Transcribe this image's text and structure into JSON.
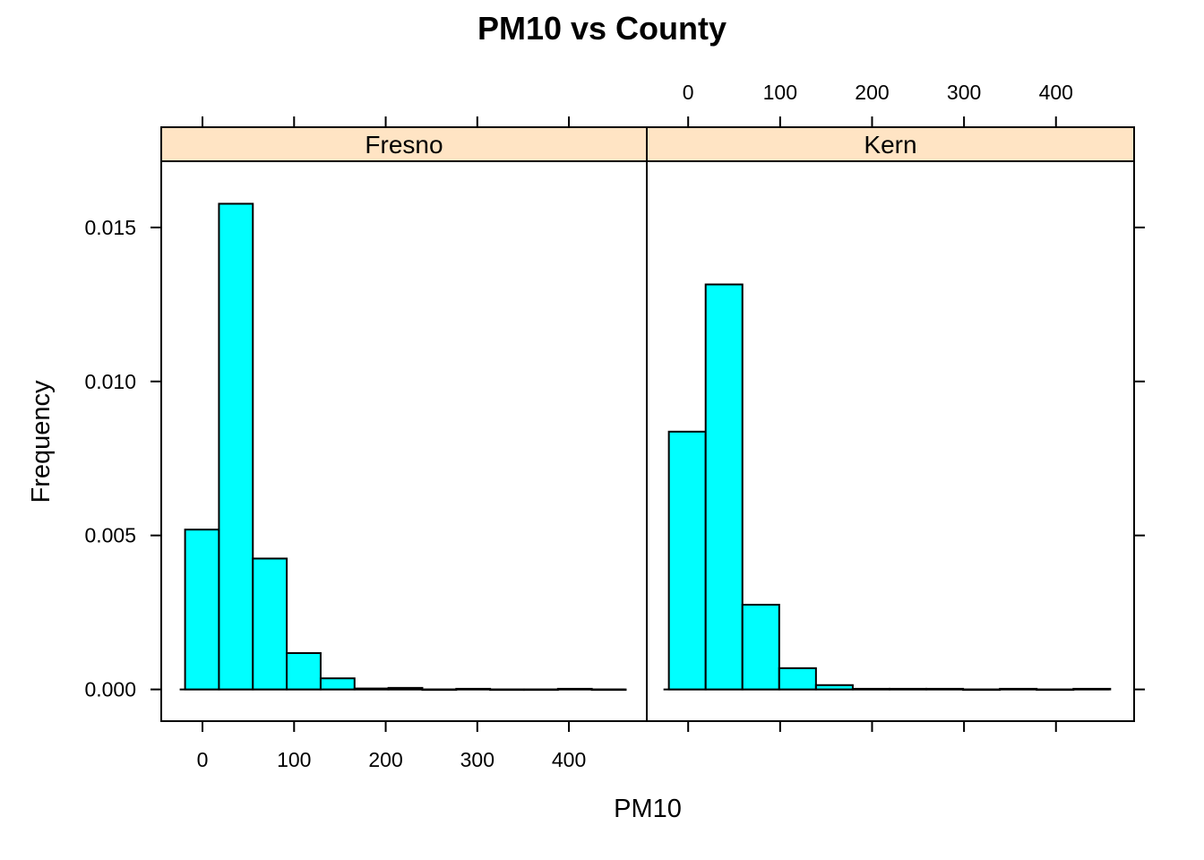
{
  "chart_data": {
    "type": "bar",
    "title": "PM10 vs County",
    "xlabel": "PM10",
    "ylabel": "Frequency",
    "xlim": [
      -45,
      485
    ],
    "ylim": [
      -0.00103,
      0.01715
    ],
    "x_ticks": [
      0,
      100,
      200,
      300,
      400
    ],
    "x_tick_labels": [
      "0",
      "100",
      "200",
      "300",
      "400"
    ],
    "y_ticks": [
      0.0,
      0.005,
      0.01,
      0.015
    ],
    "y_tick_labels": [
      "0.000",
      "0.005",
      "0.010",
      "0.015"
    ],
    "grid": false,
    "colors": {
      "bar_fill": "#00ffff",
      "bar_stroke": "#000000",
      "strip_fill": "#ffe4c4",
      "frame": "#000000"
    },
    "panels": [
      {
        "name": "Fresno",
        "bin_edges": [
          -19,
          18,
          55,
          92,
          129,
          166,
          203,
          240,
          277,
          314,
          351,
          388,
          425,
          462
        ],
        "values": [
          0.00519,
          0.01577,
          0.00425,
          0.00118,
          0.00036,
          3e-05,
          5e-05,
          0.0,
          2e-05,
          0.0,
          0.0,
          2e-05,
          0.0
        ]
      },
      {
        "name": "Kern",
        "bin_edges": [
          -21,
          19,
          59,
          99,
          139,
          179,
          219,
          259,
          299,
          339,
          379,
          419,
          459
        ],
        "values": [
          0.00837,
          0.01315,
          0.00275,
          0.00069,
          0.00014,
          2e-05,
          2e-05,
          2e-05,
          0.0,
          2e-05,
          0.0,
          2e-05
        ]
      }
    ]
  }
}
